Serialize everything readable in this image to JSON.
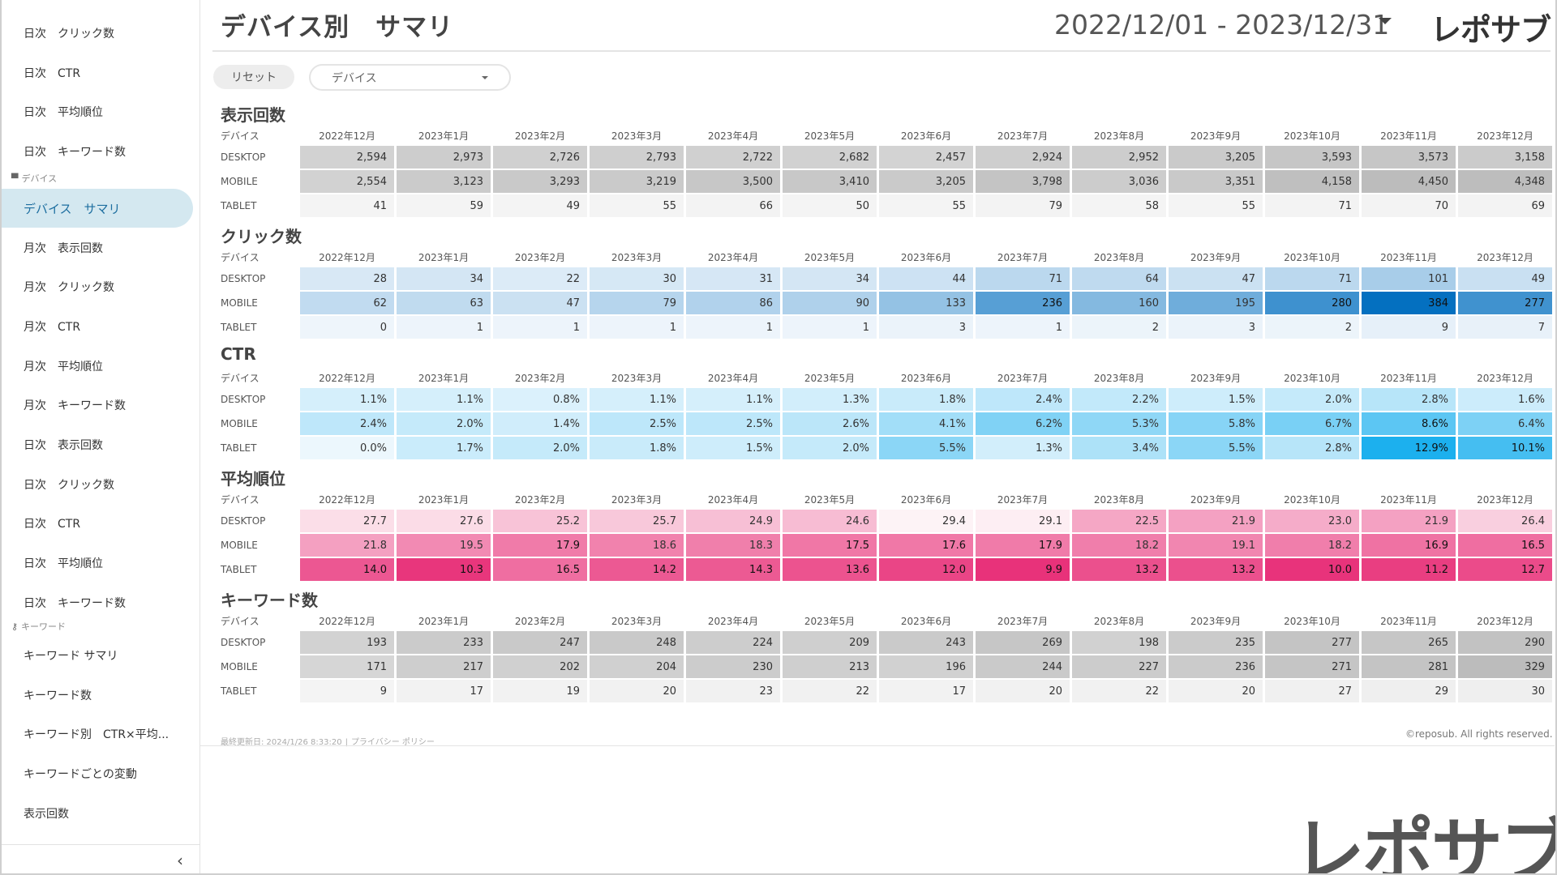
{
  "sidebar": {
    "items": [
      {
        "label": "日次　クリック数",
        "type": "item"
      },
      {
        "label": "日次　CTR",
        "type": "item"
      },
      {
        "label": "日次　平均順位",
        "type": "item"
      },
      {
        "label": "日次　キーワード数",
        "type": "item"
      },
      {
        "label": "デバイス",
        "type": "section",
        "icon": "monitor-icon"
      },
      {
        "label": "デバイス　サマリ",
        "type": "item",
        "active": true
      },
      {
        "label": "月次　表示回数",
        "type": "item"
      },
      {
        "label": "月次　クリック数",
        "type": "item"
      },
      {
        "label": "月次　CTR",
        "type": "item"
      },
      {
        "label": "月次　平均順位",
        "type": "item"
      },
      {
        "label": "月次　キーワード数",
        "type": "item"
      },
      {
        "label": "日次　表示回数",
        "type": "item"
      },
      {
        "label": "日次　クリック数",
        "type": "item"
      },
      {
        "label": "日次　CTR",
        "type": "item"
      },
      {
        "label": "日次　平均順位",
        "type": "item"
      },
      {
        "label": "日次　キーワード数",
        "type": "item"
      },
      {
        "label": "キーワード",
        "type": "section",
        "icon": "key-icon"
      },
      {
        "label": "キーワード サマリ",
        "type": "item"
      },
      {
        "label": "キーワード数",
        "type": "item"
      },
      {
        "label": "キーワード別　CTR×平均...",
        "type": "item"
      },
      {
        "label": "キーワードごとの変動",
        "type": "item"
      },
      {
        "label": "表示回数",
        "type": "item"
      }
    ],
    "collapse_icon": "chevron-left-icon",
    "collapse_glyph": "‹"
  },
  "header": {
    "title": "デバイス別　サマリ",
    "date_range": "2022/12/01 - 2023/12/31",
    "brand": "レポサブ"
  },
  "controls": {
    "reset_label": "リセット",
    "device_select_value": "デバイス"
  },
  "table": {
    "row_header": "デバイス",
    "months": [
      "2022年12月",
      "2023年1月",
      "2023年2月",
      "2023年3月",
      "2023年4月",
      "2023年5月",
      "2023年6月",
      "2023年7月",
      "2023年8月",
      "2023年9月",
      "2023年10月",
      "2023年11月",
      "2023年12月"
    ],
    "devices": [
      "DESKTOP",
      "MOBILE",
      "TABLET"
    ]
  },
  "sections": [
    {
      "title": "表示回数",
      "palette": "gray",
      "rows": [
        [
          "2,594",
          "2,973",
          "2,726",
          "2,793",
          "2,722",
          "2,682",
          "2,457",
          "2,924",
          "2,952",
          "3,205",
          "3,593",
          "3,573",
          "3,158"
        ],
        [
          "2,554",
          "3,123",
          "3,293",
          "3,219",
          "3,500",
          "3,410",
          "3,205",
          "3,798",
          "3,036",
          "3,351",
          "4,158",
          "4,450",
          "4,348"
        ],
        [
          "41",
          "59",
          "49",
          "55",
          "66",
          "50",
          "55",
          "79",
          "58",
          "55",
          "71",
          "70",
          "69"
        ]
      ]
    },
    {
      "title": "クリック数",
      "palette": "blue",
      "rows": [
        [
          "28",
          "34",
          "22",
          "30",
          "31",
          "34",
          "44",
          "71",
          "64",
          "47",
          "71",
          "101",
          "49"
        ],
        [
          "62",
          "63",
          "47",
          "79",
          "86",
          "90",
          "133",
          "236",
          "160",
          "195",
          "280",
          "384",
          "277"
        ],
        [
          "0",
          "1",
          "1",
          "1",
          "1",
          "1",
          "3",
          "1",
          "2",
          "3",
          "2",
          "9",
          "7"
        ]
      ]
    },
    {
      "title": "CTR",
      "palette": "cyan",
      "rows": [
        [
          "1.1%",
          "1.1%",
          "0.8%",
          "1.1%",
          "1.1%",
          "1.3%",
          "1.8%",
          "2.4%",
          "2.2%",
          "1.5%",
          "2.0%",
          "2.8%",
          "1.6%"
        ],
        [
          "2.4%",
          "2.0%",
          "1.4%",
          "2.5%",
          "2.5%",
          "2.6%",
          "4.1%",
          "6.2%",
          "5.3%",
          "5.8%",
          "6.7%",
          "8.6%",
          "6.4%"
        ],
        [
          "0.0%",
          "1.7%",
          "2.0%",
          "1.8%",
          "1.5%",
          "2.0%",
          "5.5%",
          "1.3%",
          "3.4%",
          "5.5%",
          "2.8%",
          "12.9%",
          "10.1%"
        ]
      ]
    },
    {
      "title": "平均順位",
      "palette": "pink",
      "rows": [
        [
          "27.7",
          "27.6",
          "25.2",
          "25.7",
          "24.9",
          "24.6",
          "29.4",
          "29.1",
          "22.5",
          "21.9",
          "23.0",
          "21.9",
          "26.4"
        ],
        [
          "21.8",
          "19.5",
          "17.9",
          "18.6",
          "18.3",
          "17.5",
          "17.6",
          "17.9",
          "18.2",
          "19.1",
          "18.2",
          "16.9",
          "16.5"
        ],
        [
          "14.0",
          "10.3",
          "16.5",
          "14.2",
          "14.3",
          "13.6",
          "12.0",
          "9.9",
          "13.2",
          "13.2",
          "10.0",
          "11.2",
          "12.7"
        ]
      ]
    },
    {
      "title": "キーワード数",
      "palette": "gray",
      "rows": [
        [
          "193",
          "233",
          "247",
          "248",
          "224",
          "209",
          "243",
          "269",
          "198",
          "235",
          "277",
          "265",
          "290"
        ],
        [
          "171",
          "217",
          "202",
          "204",
          "230",
          "213",
          "196",
          "244",
          "227",
          "236",
          "271",
          "281",
          "329"
        ],
        [
          "9",
          "17",
          "19",
          "20",
          "23",
          "22",
          "17",
          "20",
          "22",
          "20",
          "27",
          "29",
          "30"
        ]
      ]
    }
  ],
  "footer": {
    "updated": "最終更新日: 2024/1/26 8:33:20",
    "separator": "|",
    "privacy": "プライバシー ポリシー",
    "copyright": "©reposub. All rights reserved."
  },
  "watermark_logo": "レポサブ",
  "colors": {
    "active_nav_bg": "#d4e8f0",
    "active_nav_text": "#1e6fa0"
  }
}
